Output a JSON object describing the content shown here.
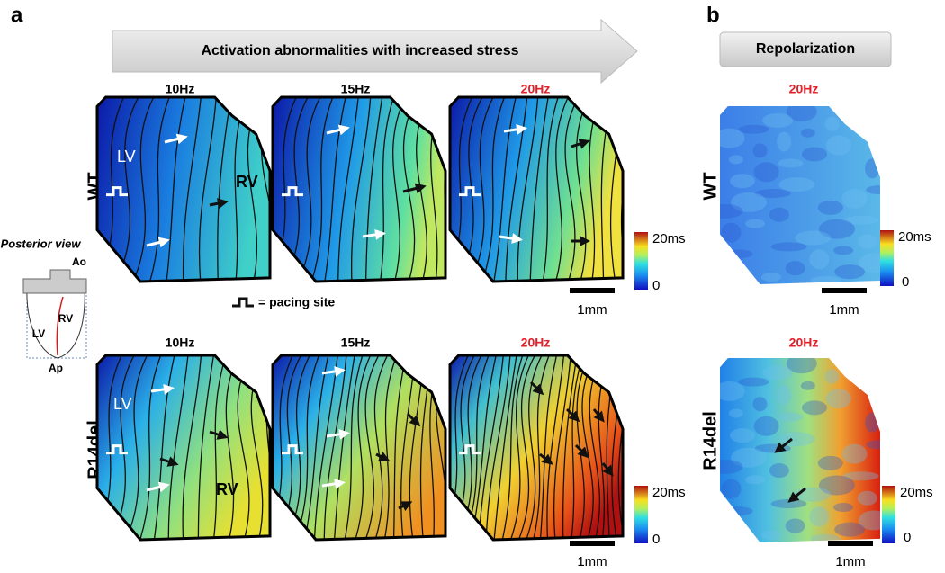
{
  "panel_a": {
    "letter": "a",
    "banner": "Activation abnormalities with increased stress",
    "rows": [
      {
        "genotype": "WT",
        "frequencies": [
          "10Hz",
          "15Hz",
          "20Hz"
        ]
      },
      {
        "genotype": "R14del",
        "frequencies": [
          "10Hz",
          "15Hz",
          "20Hz"
        ]
      }
    ],
    "region_labels": {
      "lv": "LV",
      "rv": "RV"
    },
    "pacing_legend": "= pacing site",
    "inset": {
      "title": "Posterior view",
      "aorta": "Ao",
      "apex": "Ap",
      "rv": "RV",
      "lv": "LV"
    },
    "colorbar": {
      "max": "20ms",
      "min": "0"
    },
    "scale_bar": "1mm"
  },
  "panel_b": {
    "letter": "b",
    "header": "Repolarization",
    "rows": [
      {
        "genotype": "WT",
        "frequency": "20Hz"
      },
      {
        "genotype": "R14del",
        "frequency": "20Hz"
      }
    ],
    "colorbar": {
      "max": "20ms",
      "min": "0"
    },
    "scale_bar": "1mm"
  }
}
